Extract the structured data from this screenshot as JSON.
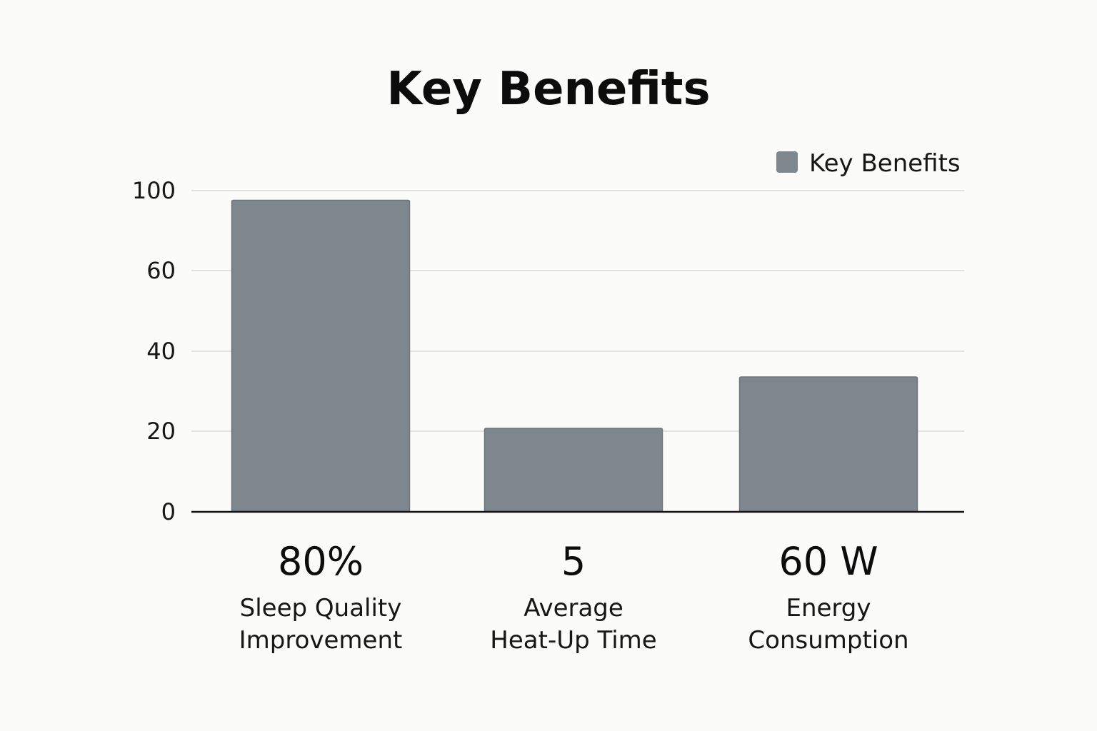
{
  "chart_data": {
    "type": "bar",
    "title": "Key Benefits",
    "categories": [
      [
        "Sleep Quality",
        "Improvement"
      ],
      [
        "Average",
        "Heat-Up Time"
      ],
      [
        "Energy",
        "Consumption"
      ]
    ],
    "value_labels": [
      "80%",
      "5",
      "60 W"
    ],
    "series": [
      {
        "name": "Key Benefits",
        "values": [
          97,
          26,
          42
        ],
        "color": "#7f878e"
      }
    ],
    "y_ticks": [
      0,
      20,
      40,
      60,
      100
    ],
    "ylim": [
      0,
      100
    ],
    "grid": true,
    "legend_position": "top-right"
  }
}
